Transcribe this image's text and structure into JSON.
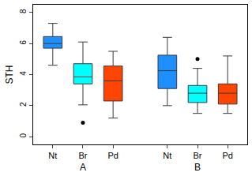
{
  "chart_data": {
    "type": "box",
    "ylabel": "STH",
    "categories": [
      "A",
      "B"
    ],
    "series": [
      {
        "name": "Nt",
        "color": "#1e8fff",
        "lowerfence": [
          4.6,
          2.0
        ],
        "q1": [
          5.7,
          3.1
        ],
        "median": [
          6.0,
          4.25
        ],
        "q3": [
          6.45,
          5.25
        ],
        "upperfence": [
          7.3,
          6.4
        ],
        "outliers": [
          [],
          []
        ]
      },
      {
        "name": "Br",
        "color": "#00ffff",
        "lowerfence": [
          2.05,
          1.5
        ],
        "q1": [
          3.4,
          2.2
        ],
        "median": [
          3.85,
          2.8
        ],
        "q3": [
          4.7,
          3.3
        ],
        "upperfence": [
          6.1,
          4.4
        ],
        "outliers": [
          [
            0.9
          ],
          [
            5.0
          ]
        ]
      },
      {
        "name": "Pd",
        "color": "#ff4500",
        "lowerfence": [
          1.2,
          1.5
        ],
        "q1": [
          2.3,
          2.1
        ],
        "median": [
          3.6,
          2.8
        ],
        "q3": [
          4.55,
          3.4
        ],
        "upperfence": [
          5.5,
          5.2
        ],
        "outliers": [
          [],
          []
        ]
      }
    ],
    "ylim": [
      -0.5,
      8.5
    ],
    "yticks": [
      0,
      2,
      4,
      6,
      8
    ],
    "grid": false
  }
}
